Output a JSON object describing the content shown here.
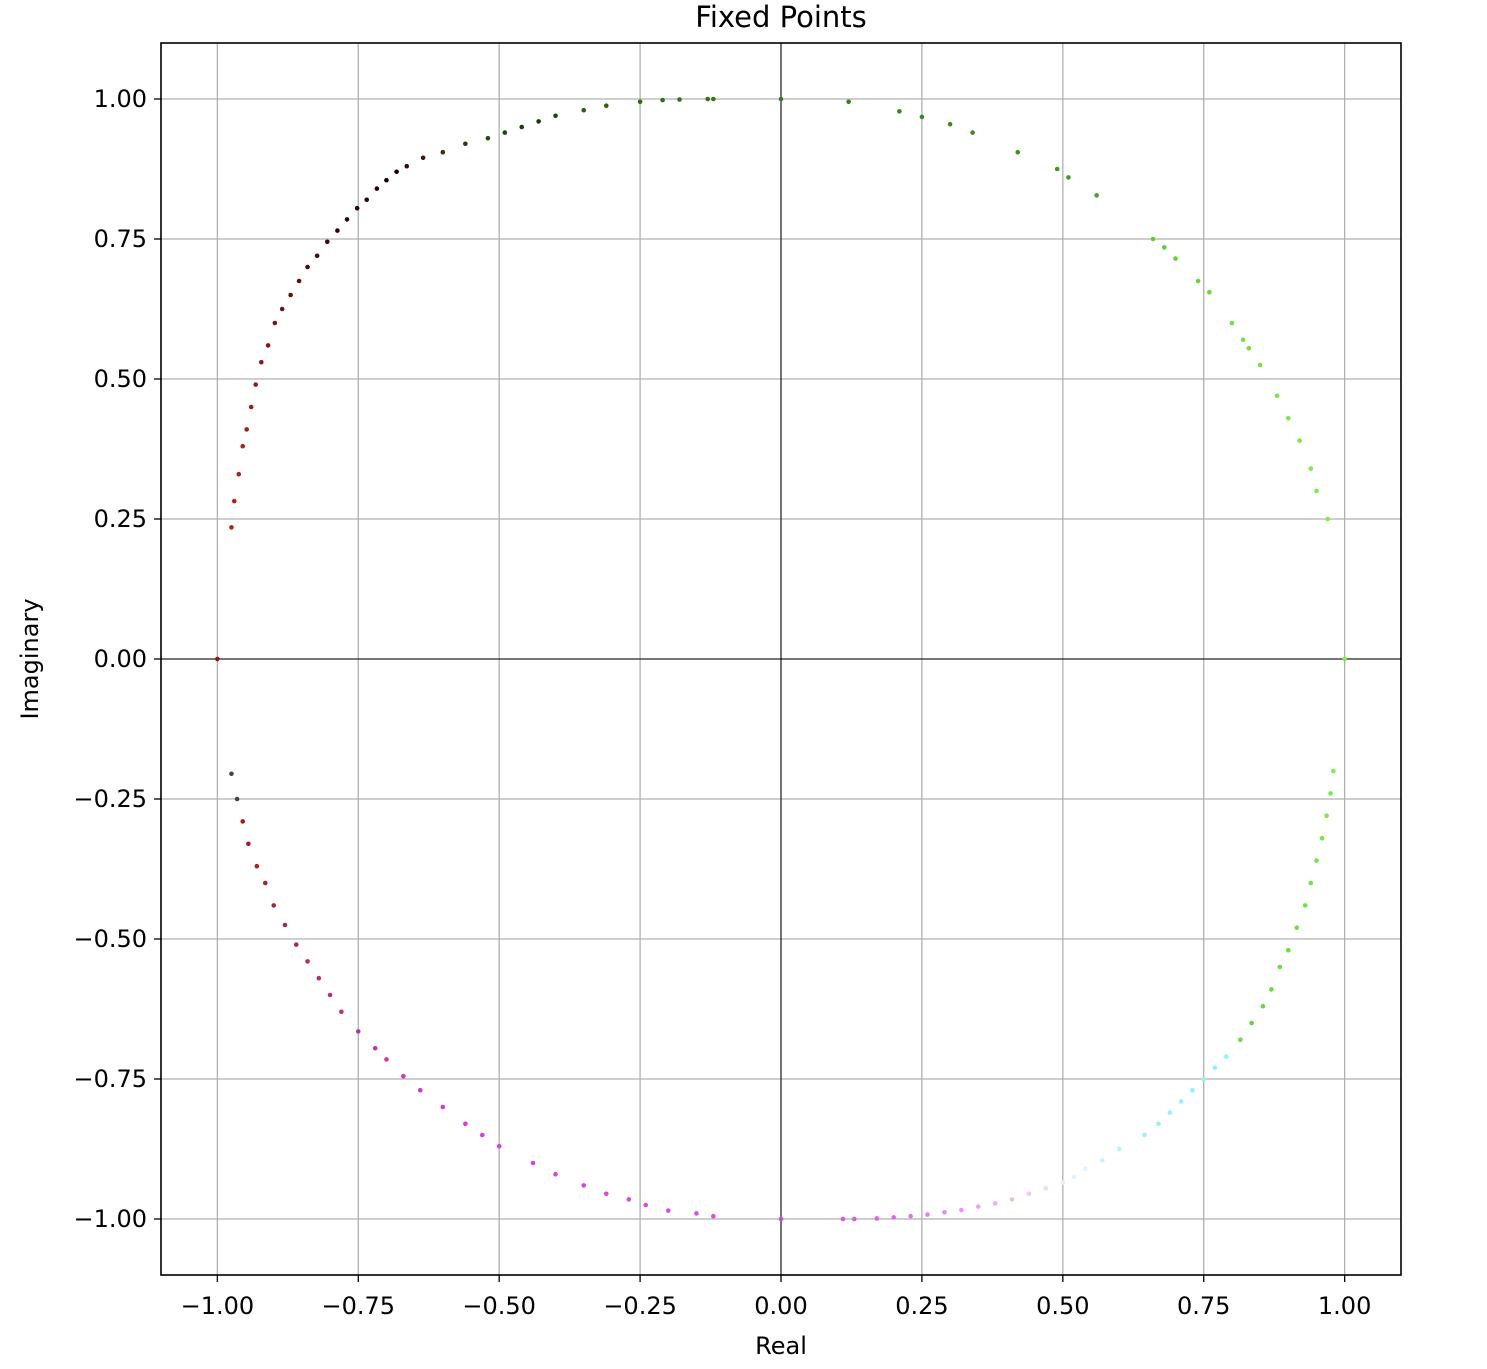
{
  "chart_data": {
    "type": "scatter",
    "title": "Fixed Points",
    "xlabel": "Real",
    "ylabel": "Imaginary",
    "xlim": [
      -1.1,
      1.1
    ],
    "ylim": [
      -1.1,
      1.1
    ],
    "xticks": [
      "−1.00",
      "−0.75",
      "−0.50",
      "−0.25",
      "0.00",
      "0.25",
      "0.50",
      "0.75",
      "1.00"
    ],
    "yticks": [
      "1.00",
      "0.75",
      "0.50",
      "0.25",
      "0.00",
      "−0.25",
      "−0.50",
      "−0.75",
      "−1.00"
    ],
    "grid": true,
    "reference_lines": [
      {
        "axis": "x",
        "value": 0
      },
      {
        "axis": "y",
        "value": 0
      }
    ],
    "marker_colors": {
      "dark_red": "#3a0008",
      "red": "#c0281e",
      "magenta": "#e040e8",
      "pink": "#f2a8f5",
      "cyan": "#8ef2ff",
      "light_green": "#78e848",
      "dark_green": "#2a6a14",
      "mid_green": "#3c8a20"
    },
    "series": [
      {
        "description": "points on the unit circle, colored by angle",
        "x": [
          -1.0,
          -0.975,
          -0.97,
          -0.962,
          -0.955,
          -0.948,
          -0.94,
          -0.932,
          -0.922,
          -0.91,
          -0.898,
          -0.885,
          -0.87,
          -0.855,
          -0.84,
          -0.823,
          -0.805,
          -0.787,
          -0.77,
          -0.752,
          -0.735,
          -0.717,
          -0.7,
          -0.682,
          -0.664,
          -0.635,
          -0.6,
          -0.56,
          -0.52,
          -0.49,
          -0.46,
          -0.43,
          -0.4,
          -0.35,
          -0.31,
          -0.25,
          -0.21,
          -0.18,
          -0.13,
          -0.12,
          0.0,
          0.12,
          0.21,
          0.25,
          0.3,
          0.34,
          0.42,
          0.49,
          0.51,
          0.56,
          0.66,
          0.68,
          0.7,
          0.74,
          0.76,
          0.8,
          0.82,
          0.83,
          0.85,
          0.88,
          0.9,
          0.92,
          0.94,
          0.95,
          0.97,
          1.0,
          0.98,
          0.975,
          0.968,
          0.96,
          0.95,
          0.94,
          0.93,
          0.915,
          0.9,
          0.885,
          0.87,
          0.855,
          0.835,
          0.815,
          0.79,
          0.77,
          0.75,
          0.73,
          0.71,
          0.69,
          0.67,
          0.645,
          0.6,
          0.57,
          0.54,
          0.52,
          0.5,
          0.47,
          0.44,
          0.41,
          0.38,
          0.35,
          0.32,
          0.29,
          0.26,
          0.23,
          0.2,
          0.17,
          0.13,
          0.11,
          0.0,
          -0.12,
          -0.15,
          -0.2,
          -0.24,
          -0.27,
          -0.31,
          -0.35,
          -0.4,
          -0.44,
          -0.5,
          -0.53,
          -0.56,
          -0.6,
          -0.64,
          -0.67,
          -0.7,
          -0.72,
          -0.75,
          -0.78,
          -0.8,
          -0.82,
          -0.84,
          -0.86,
          -0.88,
          -0.9,
          -0.915,
          -0.93,
          -0.945,
          -0.955,
          -0.965,
          -0.975
        ],
        "y": [
          0.0,
          0.235,
          0.282,
          0.33,
          0.38,
          0.41,
          0.45,
          0.49,
          0.53,
          0.56,
          0.6,
          0.625,
          0.65,
          0.675,
          0.7,
          0.72,
          0.745,
          0.765,
          0.785,
          0.805,
          0.82,
          0.84,
          0.855,
          0.87,
          0.88,
          0.895,
          0.905,
          0.92,
          0.93,
          0.94,
          0.95,
          0.96,
          0.97,
          0.98,
          0.988,
          0.995,
          0.998,
          0.999,
          1.0,
          1.0,
          1.0,
          0.995,
          0.978,
          0.968,
          0.955,
          0.94,
          0.905,
          0.875,
          0.86,
          0.828,
          0.75,
          0.735,
          0.715,
          0.675,
          0.655,
          0.6,
          0.57,
          0.555,
          0.525,
          0.47,
          0.43,
          0.39,
          0.34,
          0.3,
          0.25,
          0.0,
          -0.2,
          -0.24,
          -0.28,
          -0.32,
          -0.36,
          -0.4,
          -0.44,
          -0.48,
          -0.52,
          -0.55,
          -0.59,
          -0.62,
          -0.65,
          -0.68,
          -0.71,
          -0.73,
          -0.75,
          -0.77,
          -0.79,
          -0.81,
          -0.83,
          -0.85,
          -0.875,
          -0.895,
          -0.91,
          -0.925,
          -0.935,
          -0.945,
          -0.955,
          -0.965,
          -0.972,
          -0.978,
          -0.984,
          -0.988,
          -0.992,
          -0.995,
          -0.997,
          -0.999,
          -1.0,
          -1.0,
          -1.0,
          -0.995,
          -0.99,
          -0.985,
          -0.975,
          -0.965,
          -0.955,
          -0.94,
          -0.92,
          -0.9,
          -0.87,
          -0.85,
          -0.83,
          -0.8,
          -0.77,
          -0.745,
          -0.715,
          -0.695,
          -0.665,
          -0.63,
          -0.6,
          -0.57,
          -0.54,
          -0.51,
          -0.475,
          -0.44,
          -0.4,
          -0.37,
          -0.33,
          -0.29,
          -0.25,
          -0.205
        ],
        "colors": [
          "#8a1a1a",
          "#b02418",
          "#b02418",
          "#a82218",
          "#a82218",
          "#a02018",
          "#9a1e18",
          "#921c18",
          "#8a1a18",
          "#801818",
          "#781616",
          "#6a1414",
          "#601212",
          "#561010",
          "#4a0e0e",
          "#400c0c",
          "#380a0a",
          "#300808",
          "#2c0606",
          "#280606",
          "#220404",
          "#1e0404",
          "#1a0202",
          "#160202",
          "#2a1010",
          "#3a1a10",
          "#3a2a10",
          "#283a10",
          "#2a4a12",
          "#204014",
          "#1a3a10",
          "#143a0a",
          "#1c4a10",
          "#2a5a14",
          "#2e6014",
          "#2e6a16",
          "#306e18",
          "#327018",
          "#347418",
          "#367818",
          "#3a7a1a",
          "#3a8020",
          "#3c8420",
          "#3c8420",
          "#3e8822",
          "#408a24",
          "#428e26",
          "#469428",
          "#4a982a",
          "#4e9c2c",
          "#62c838",
          "#64cc3a",
          "#66ce3a",
          "#6ad43c",
          "#6cd83e",
          "#70dc40",
          "#72de40",
          "#74e040",
          "#76e242",
          "#78e444",
          "#7ae644",
          "#7ce846",
          "#7eea46",
          "#7eea48",
          "#80ec48",
          "#80ec48",
          "#80ec48",
          "#7cea48",
          "#7ae846",
          "#78e644",
          "#76e444",
          "#74e242",
          "#72e040",
          "#70de40",
          "#6edc3e",
          "#6cda3e",
          "#6ad83c",
          "#68d63c",
          "#66d43a",
          "#6ad854",
          "#8ef2ff",
          "#8ef2ff",
          "#8ef2ff",
          "#92f0ff",
          "#92f0ff",
          "#96f0ff",
          "#9aeefe",
          "#a0eefd",
          "#b4f4fd",
          "#c8f4fc",
          "#daf2fb",
          "#eaf0fa",
          "#f2e8f9",
          "#f2d8f8",
          "#f0c8f7",
          "#eebaf6",
          "#ecaef5",
          "#eaa2f4",
          "#e896f3",
          "#e68af2",
          "#e47ef1",
          "#e272f0",
          "#e068ef",
          "#de60ee",
          "#dc58ed",
          "#dc52ec",
          "#c050e0",
          "#d850ea",
          "#d84eea",
          "#d84ce8",
          "#d84ae8",
          "#d848e6",
          "#d846e4",
          "#d644e2",
          "#d444e0",
          "#d444dc",
          "#d442d8",
          "#d440d4",
          "#d43ece",
          "#d43cc8",
          "#d43ac0",
          "#d038b8",
          "#cc36ac",
          "#c834a0",
          "#c43294",
          "#c03088",
          "#bc2e7c",
          "#b82c6e",
          "#b42a60",
          "#b02852",
          "#ac2644",
          "#aa2438",
          "#a8222e",
          "#a62024",
          "#a41e1e",
          "#a21c1c"
        ]
      }
    ]
  }
}
